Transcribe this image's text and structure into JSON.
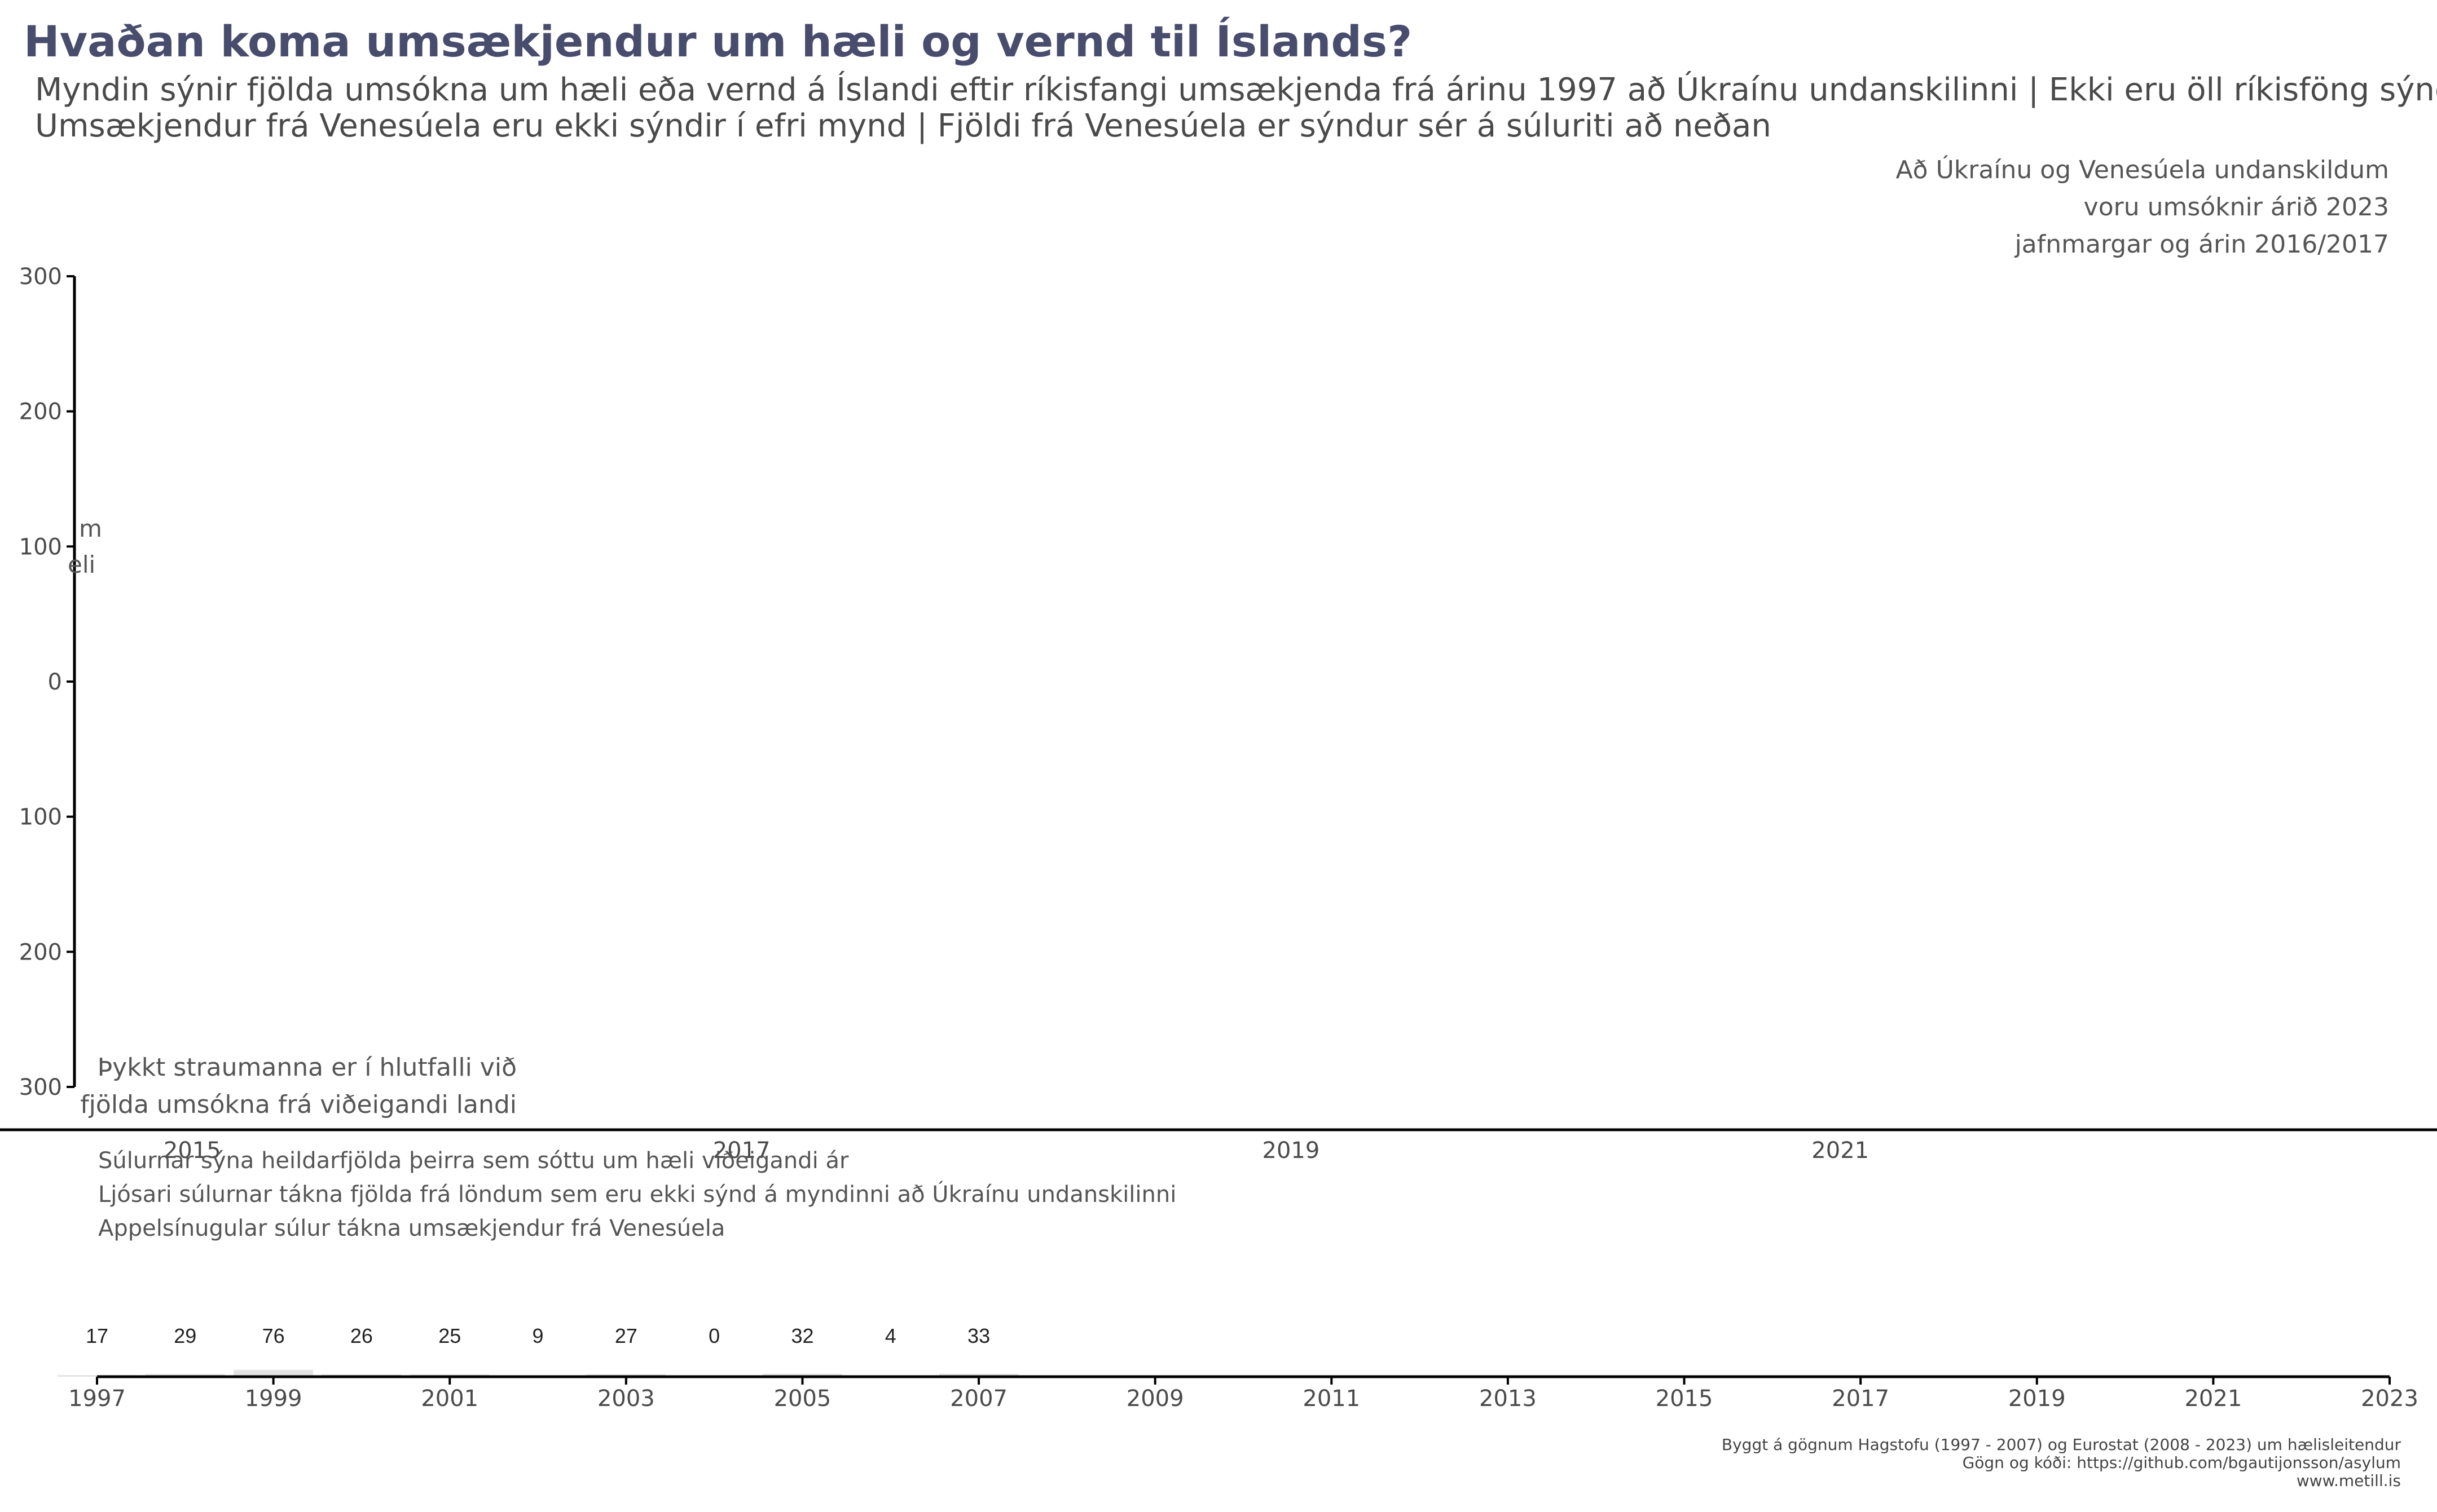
{
  "title": "Hvaðan koma umsækjendur um hæli og vernd til Íslands?",
  "subtitle": [
    "Myndin sýnir fjölda umsókna um hæli eða vernd á Íslandi eftir ríkisfangi umsækjenda frá árinu 1997 að Úkraínu undanskilinni | Ekki eru öll ríkisföng sýnd |",
    "Umsækjendur frá Venesúela eru ekki sýndir í efri mynd | Fjöldi frá Venesúela er sýndur sér á súluriti að neðan"
  ],
  "annotations": {
    "top_right": [
      "Að Úkraínu og Venesúela undanskildum",
      "voru umsóknir árið 2023",
      "jafnmargar og árin 2016/2017"
    ],
    "left_partial": [
      "m",
      "eli"
    ],
    "stream_note": [
      "Þykkt straumanna er í hlutfalli við",
      "fjölda umsókna frá viðeigandi landi"
    ],
    "bar_notes": [
      "Súlurnar sýna heildarfjölda þeirra sem sóttu um hæli viðeigandi ár",
      "Ljósari súlurnar tákna fjölda frá löndum sem eru ekki sýnd á myndinni að Úkraínu undanskilinni",
      "Appelsínugular súlur tákna umsækjendur frá Venesúela"
    ]
  },
  "caption": [
    "Byggt á gögnum Hagstofu (1997 - 2007) og Eurostat (2008 - 2023) um hælisleitendur",
    "Gögn og kóði:  https://github.com/bgautijonsson/asylum",
    "www.metill.is"
  ],
  "colors": {
    "title": "#484D6D",
    "axis": "#000000",
    "bar_light": "#e3e3e3",
    "bar_dark": "#bdbdbd",
    "venezuela": "#f28e2b"
  },
  "chart_data": [
    {
      "type": "area",
      "yticks": [
        300,
        200,
        100,
        0,
        100,
        200,
        300
      ],
      "ylim": [
        -300,
        300
      ],
      "x_tick_labels": [
        "2015",
        "2017",
        "2019",
        "2021"
      ],
      "xlim": [
        2014.3,
        2023
      ],
      "series": []
    },
    {
      "type": "bar",
      "xlim": [
        1997,
        2023
      ],
      "x_tick_labels": [
        "1997",
        "1999",
        "2001",
        "2003",
        "2005",
        "2007",
        "2009",
        "2011",
        "2013",
        "2015",
        "2017",
        "2019",
        "2021",
        "2023"
      ],
      "bars": [
        {
          "year": 1997,
          "label": "17",
          "total": 17,
          "not_shown": 17
        },
        {
          "year": 1998,
          "label": "29",
          "total": 29,
          "not_shown": 29
        },
        {
          "year": 1999,
          "label": "76",
          "total": 76,
          "not_shown": 76
        },
        {
          "year": 2000,
          "label": "26",
          "total": 26,
          "not_shown": 26
        },
        {
          "year": 2001,
          "label": "25",
          "total": 25,
          "not_shown": 25
        },
        {
          "year": 2002,
          "label": "9",
          "total": 9,
          "not_shown": 0
        },
        {
          "year": 2003,
          "label": "27",
          "total": 27,
          "not_shown": 27
        },
        {
          "year": 2004,
          "label": "0",
          "total": 0,
          "not_shown": 0
        },
        {
          "year": 2005,
          "label": "32",
          "total": 32,
          "not_shown": 32
        },
        {
          "year": 2006,
          "label": "4",
          "total": 4,
          "not_shown": 4
        },
        {
          "year": 2007,
          "label": "33",
          "total": 33,
          "not_shown": 33
        }
      ]
    }
  ]
}
